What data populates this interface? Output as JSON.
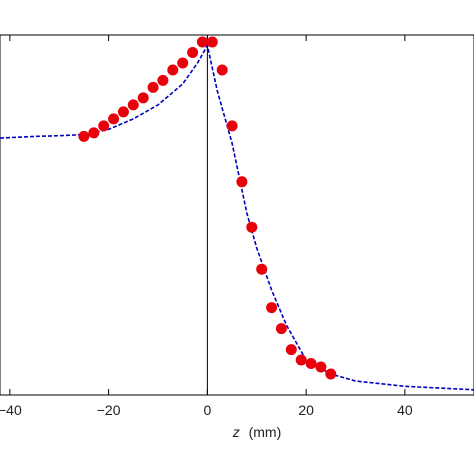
{
  "chart_data": {
    "type": "scatter",
    "xlabel_var": "z",
    "xlabel_unit": "(mm)",
    "xlim": [
      -42,
      54
    ],
    "ylim": [
      0,
      1.03
    ],
    "x_ticks": [
      -40,
      -20,
      0,
      20,
      40
    ],
    "x_tick_labels": [
      "−40",
      "−20",
      "0",
      "20",
      "40"
    ],
    "y_ticks": [],
    "grid": false,
    "legend": "none",
    "vertical_reference_line_x": 0,
    "series": [
      {
        "kind": "points",
        "color": "#e8000b",
        "x": [
          -25,
          -23,
          -21,
          -19,
          -17,
          -15,
          -13,
          -11,
          -9,
          -7,
          -5,
          -3,
          -1,
          1,
          3,
          5,
          7,
          9,
          11,
          13,
          15,
          17,
          19,
          21,
          23,
          25
        ],
        "y": [
          0.74,
          0.75,
          0.77,
          0.79,
          0.81,
          0.83,
          0.85,
          0.88,
          0.9,
          0.93,
          0.95,
          0.98,
          1.01,
          1.01,
          0.93,
          0.77,
          0.61,
          0.48,
          0.36,
          0.25,
          0.19,
          0.13,
          0.1,
          0.09,
          0.08,
          0.06
        ]
      },
      {
        "kind": "dashed-line",
        "color": "#0000bb",
        "x": [
          -42,
          -35,
          -30,
          -25,
          -20,
          -15,
          -10,
          -5,
          -2,
          0,
          2,
          5,
          8,
          10,
          13,
          16,
          20,
          25,
          30,
          40,
          54
        ],
        "y": [
          0.735,
          0.74,
          0.742,
          0.745,
          0.76,
          0.79,
          0.83,
          0.89,
          0.95,
          1.0,
          0.87,
          0.72,
          0.52,
          0.42,
          0.3,
          0.2,
          0.1,
          0.06,
          0.04,
          0.025,
          0.015
        ]
      }
    ],
    "colors": {
      "axis": "#000000",
      "points": "#e8000b",
      "model_line": "#0000bb"
    }
  }
}
